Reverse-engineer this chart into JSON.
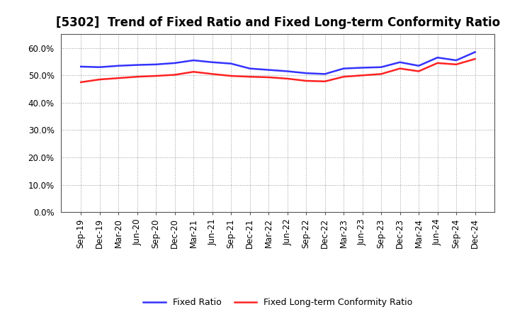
{
  "title": "[5302]  Trend of Fixed Ratio and Fixed Long-term Conformity Ratio",
  "x_labels": [
    "Sep-19",
    "Dec-19",
    "Mar-20",
    "Jun-20",
    "Sep-20",
    "Dec-20",
    "Mar-21",
    "Jun-21",
    "Sep-21",
    "Dec-21",
    "Mar-22",
    "Jun-22",
    "Sep-22",
    "Dec-22",
    "Mar-23",
    "Jun-23",
    "Sep-23",
    "Dec-23",
    "Mar-24",
    "Jun-24",
    "Sep-24",
    "Dec-24"
  ],
  "fixed_ratio": [
    53.2,
    53.0,
    53.5,
    53.8,
    54.0,
    54.5,
    55.5,
    54.8,
    54.3,
    52.5,
    52.0,
    51.5,
    50.8,
    50.5,
    52.5,
    52.8,
    53.0,
    54.8,
    53.5,
    56.5,
    55.5,
    58.5
  ],
  "fixed_lt_ratio": [
    47.5,
    48.5,
    49.0,
    49.5,
    49.8,
    50.2,
    51.3,
    50.5,
    49.8,
    49.5,
    49.3,
    48.8,
    48.0,
    47.8,
    49.5,
    50.0,
    50.5,
    52.5,
    51.5,
    54.5,
    54.0,
    56.0
  ],
  "ylim": [
    0,
    65
  ],
  "yticks": [
    0,
    10,
    20,
    30,
    40,
    50,
    60
  ],
  "ytick_labels": [
    "0.0%",
    "10.0%",
    "20.0%",
    "30.0%",
    "40.0%",
    "50.0%",
    "60.0%"
  ],
  "fixed_ratio_color": "#3333FF",
  "fixed_lt_ratio_color": "#FF2222",
  "legend_fixed": "Fixed Ratio",
  "legend_lt": "Fixed Long-term Conformity Ratio",
  "background_color": "#FFFFFF",
  "grid_color": "#AAAAAA",
  "title_fontsize": 12,
  "tick_fontsize": 8.5
}
